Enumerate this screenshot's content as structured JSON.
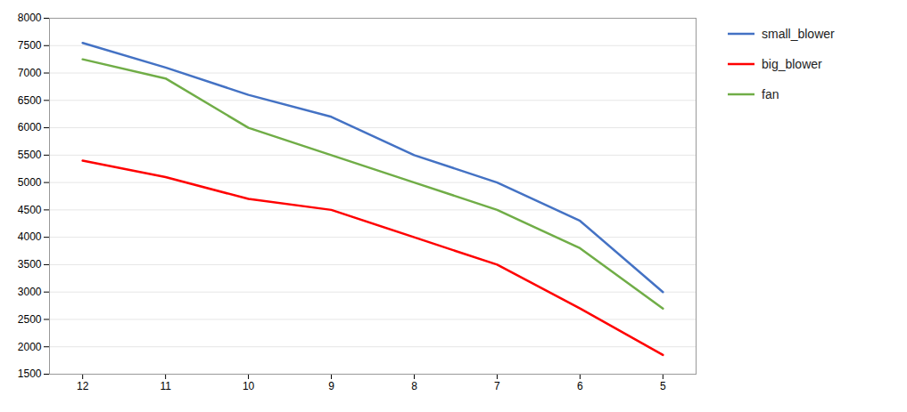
{
  "chart_data": {
    "type": "line",
    "x": [
      12,
      11,
      10,
      9,
      8,
      7,
      6,
      5
    ],
    "series": [
      {
        "name": "small_blower",
        "color": "#4472C4",
        "values": [
          7550,
          7100,
          6600,
          6200,
          5500,
          5000,
          4300,
          3000
        ]
      },
      {
        "name": "big_blower",
        "color": "#FF0000",
        "values": [
          5400,
          5100,
          4700,
          4500,
          4000,
          3500,
          2700,
          1850
        ]
      },
      {
        "name": "fan",
        "color": "#70AD47",
        "values": [
          7250,
          6900,
          6000,
          5500,
          5000,
          4500,
          3800,
          2700
        ]
      }
    ],
    "xlim": [
      12.4,
      4.6
    ],
    "xticks": [
      12,
      11,
      10,
      9,
      8,
      7,
      6,
      5
    ],
    "ylim": [
      1500,
      8000
    ],
    "yticks": [
      1500,
      2000,
      2500,
      3000,
      3500,
      4000,
      4500,
      5000,
      5500,
      6000,
      6500,
      7000,
      7500,
      8000
    ],
    "grid": true,
    "legend": "right"
  }
}
